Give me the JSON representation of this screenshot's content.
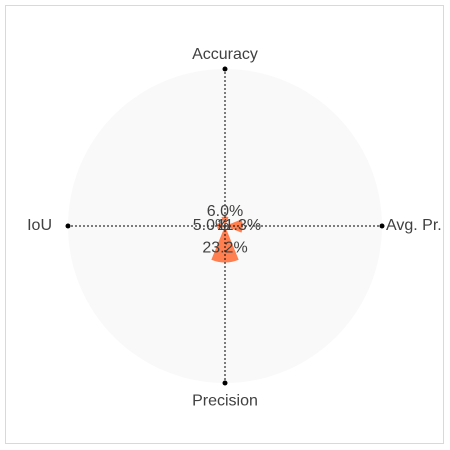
{
  "chart_data": {
    "type": "polar-bar",
    "categories": [
      "Accuracy",
      "Avg. Pr.",
      "Precision",
      "IoU"
    ],
    "values": [
      6.0,
      11.3,
      23.2,
      5.0
    ],
    "value_labels": [
      "6.0%",
      "11.3%",
      "23.2%",
      "5.0%"
    ],
    "rmax": 100,
    "grid": true,
    "legend": "none",
    "colors": {
      "background_disc": "#f9f9f9",
      "bar": "#ff7f50",
      "gridline": "#000000",
      "text": "#404040"
    }
  }
}
